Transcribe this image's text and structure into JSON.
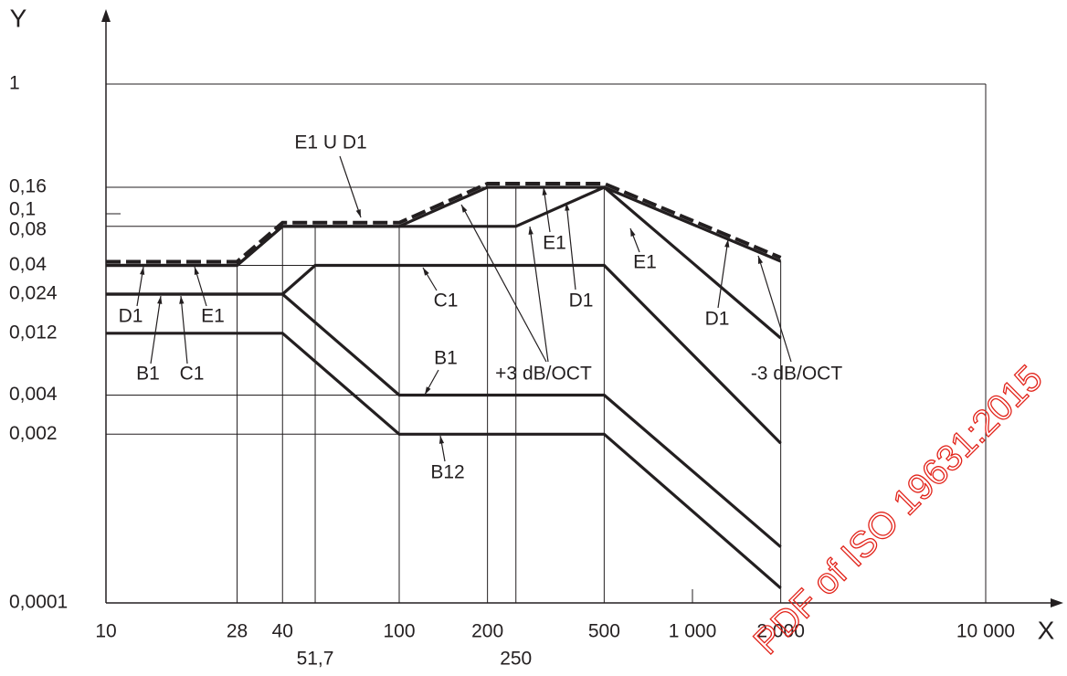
{
  "chart_data": {
    "type": "line",
    "x_label": "X",
    "y_label": "Y",
    "xscale": "log",
    "yscale": "log",
    "xlim": [
      10,
      10000
    ],
    "ylim": [
      0.0001,
      1
    ],
    "xticks": [
      10,
      28,
      40,
      {
        "value": 51.7,
        "label": "51,7"
      },
      100,
      200,
      250,
      500,
      {
        "value": 1000,
        "label": "1 000"
      },
      {
        "value": 2000,
        "label": "2 000"
      },
      {
        "value": 10000,
        "label": "10 000"
      }
    ],
    "yticks": [
      {
        "value": 0.0001,
        "label": "0,0001"
      },
      {
        "value": 0.002,
        "label": "0,002"
      },
      {
        "value": 0.004,
        "label": "0,004"
      },
      {
        "value": 0.012,
        "label": "0,012"
      },
      {
        "value": 0.024,
        "label": "0,024"
      },
      {
        "value": 0.04,
        "label": "0,04"
      },
      {
        "value": 0.08,
        "label": "0,08"
      },
      {
        "value": 0.1,
        "label": "0,1"
      },
      {
        "value": 0.16,
        "label": "0,16"
      },
      1
    ],
    "series": [
      {
        "color": "#231f20",
        "dashed": true,
        "x": [
          10,
          28,
          40,
          100,
          200,
          500,
          2000
        ],
        "values": [
          0.04,
          0.04,
          0.08,
          0.08,
          0.16,
          0.16,
          0.043
        ]
      },
      {
        "color": "#231f20",
        "x": [
          10,
          28,
          40,
          250,
          500,
          2000
        ],
        "values": [
          0.04,
          0.04,
          0.08,
          0.08,
          0.16,
          0.043
        ]
      },
      {
        "color": "#231f20",
        "x": [
          10,
          28,
          40,
          100,
          200,
          500,
          2000
        ],
        "values": [
          0.04,
          0.04,
          0.08,
          0.08,
          0.16,
          0.16,
          0.011
        ]
      },
      {
        "color": "#231f20",
        "x": [
          10,
          40,
          51.7,
          500,
          2000
        ],
        "values": [
          0.024,
          0.024,
          0.04,
          0.04,
          0.0017
        ]
      },
      {
        "color": "#231f20",
        "x": [
          10,
          40,
          100,
          500,
          2000
        ],
        "values": [
          0.024,
          0.024,
          0.004,
          0.004,
          0.00027
        ]
      },
      {
        "color": "#231f20",
        "x": [
          10,
          40,
          100,
          500,
          2000
        ],
        "values": [
          0.012,
          0.012,
          0.002,
          0.002,
          0.00013
        ]
      }
    ],
    "annotations": [
      "E1 U D1",
      "D1",
      "E1",
      "B1",
      "C1",
      "C1",
      "B1",
      "B12",
      "E1",
      "D1",
      "+3 dB/OCT",
      "E1",
      "D1",
      "-3 dB/OCT"
    ],
    "watermark": "PDF of ISO 19631:2015"
  }
}
